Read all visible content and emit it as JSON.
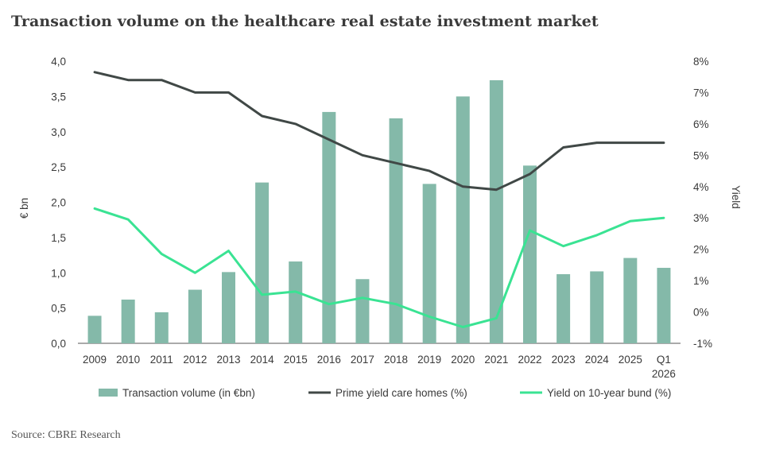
{
  "title": "Transaction volume on the healthcare real estate investment market",
  "source": "Source: CBRE Research",
  "chart_data": {
    "type": "bar",
    "categories": [
      [
        "2009"
      ],
      [
        "2010"
      ],
      [
        "2011"
      ],
      [
        "2012"
      ],
      [
        "2013"
      ],
      [
        "2014"
      ],
      [
        "2015"
      ],
      [
        "2016"
      ],
      [
        "2017"
      ],
      [
        "2018"
      ],
      [
        "2019"
      ],
      [
        "2020"
      ],
      [
        "2021"
      ],
      [
        "2022"
      ],
      [
        "2023"
      ],
      [
        "2024"
      ],
      [
        "2025"
      ],
      [
        "Q1",
        "2026"
      ]
    ],
    "ylabel_left": "€ bn",
    "ylabel_right": "Yield",
    "ylim_left": [
      0,
      4
    ],
    "ylim_right": [
      -1,
      8
    ],
    "yticks_left": [
      "0,0",
      "0,5",
      "1,0",
      "1,5",
      "2,0",
      "2,5",
      "3,0",
      "3,5",
      "4,0"
    ],
    "yticks_right": [
      "-1%",
      "0%",
      "1%",
      "2%",
      "3%",
      "4%",
      "5%",
      "6%",
      "7%",
      "8%"
    ],
    "series": [
      {
        "name": "Transaction volume (in €bn)",
        "type": "bar",
        "axis": "left",
        "color": "#84b9a9",
        "values": [
          0.39,
          0.62,
          0.44,
          0.76,
          1.01,
          2.28,
          1.16,
          3.28,
          0.91,
          3.19,
          2.26,
          3.5,
          3.73,
          2.52,
          0.98,
          1.02,
          1.21,
          1.07
        ]
      },
      {
        "name": "Prime yield care homes (%)",
        "type": "line",
        "axis": "right",
        "color": "#404846",
        "values": [
          7.65,
          7.4,
          7.4,
          7.0,
          7.0,
          6.25,
          6.0,
          5.5,
          5.0,
          4.75,
          4.5,
          4.0,
          3.9,
          4.4,
          5.25,
          5.4,
          5.4,
          5.4
        ]
      },
      {
        "name": "Yield on 10-year bund (%)",
        "type": "line",
        "axis": "right",
        "color": "#3ae393",
        "values": [
          3.3,
          2.95,
          1.85,
          1.25,
          1.95,
          0.55,
          0.65,
          0.25,
          0.45,
          0.25,
          -0.15,
          -0.48,
          -0.2,
          2.6,
          2.1,
          2.45,
          2.9,
          3.0
        ]
      }
    ],
    "legend_position": "bottom",
    "grid": false
  }
}
